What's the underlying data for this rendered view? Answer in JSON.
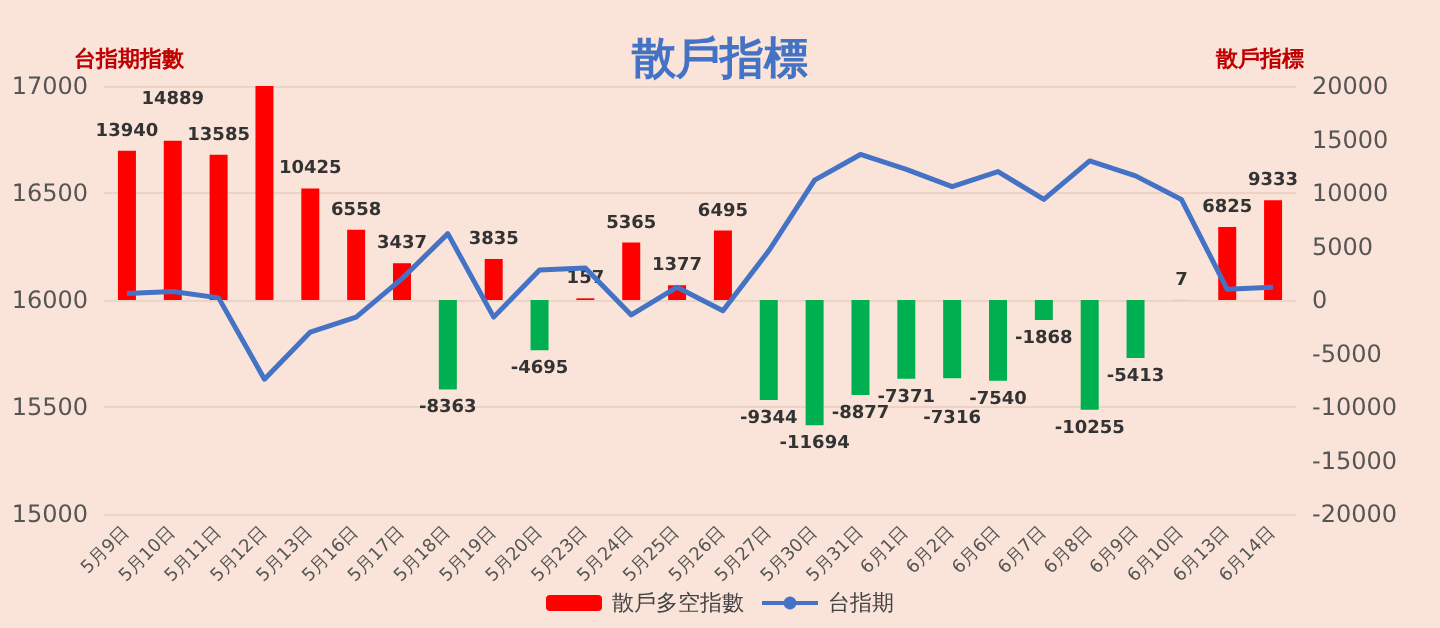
{
  "chart_data": {
    "type": "bar",
    "title": "散戶指標",
    "ylabel": "台指期指數",
    "y2label": "散戶指標",
    "categories": [
      "5月9日",
      "5月10日",
      "5月11日",
      "5月12日",
      "5月13日",
      "5月16日",
      "5月17日",
      "5月18日",
      "5月19日",
      "5月20日",
      "5月23日",
      "5月24日",
      "5月25日",
      "5月26日",
      "5月27日",
      "5月30日",
      "5月31日",
      "6月1日",
      "6月2日",
      "6月6日",
      "6月7日",
      "6月8日",
      "6月9日",
      "6月10日",
      "6月13日",
      "6月14日"
    ],
    "series": [
      {
        "name": "散戶多空指數",
        "type": "bar",
        "axis": "y2",
        "color": "#ff0000",
        "colors": [
          "#ff0000",
          "#ff0000",
          "#ff0000",
          "#ff0000",
          "#ff0000",
          "#ff0000",
          "#ff0000",
          "#00b050",
          "#ff0000",
          "#00b050",
          "#ff0000",
          "#ff0000",
          "#ff0000",
          "#ff0000",
          "#00b050",
          "#00b050",
          "#00b050",
          "#00b050",
          "#00b050",
          "#00b050",
          "#00b050",
          "#00b050",
          "#00b050",
          "#ff0000",
          "#ff0000",
          "#ff0000"
        ],
        "values": [
          13940,
          14889,
          13585,
          20000,
          10425,
          6558,
          3437,
          -8363,
          3835,
          -4695,
          157,
          5365,
          1377,
          6495,
          -9344,
          -11694,
          -8877,
          -7371,
          -7316,
          -7540,
          -1868,
          -10255,
          -5413,
          7,
          6825,
          9333
        ],
        "value_labels": [
          "13940",
          "14889",
          "13585",
          null,
          "10425",
          "6558",
          "3437",
          "-8363",
          "3835",
          "-4695",
          "157",
          "5365",
          "1377",
          "6495",
          "-9344",
          "-11694",
          "-8877",
          "-7371",
          "-7316",
          "-7540",
          "-1868",
          "-10255",
          "-5413",
          "7",
          "6825",
          "9333"
        ]
      },
      {
        "name": "台指期",
        "type": "line",
        "axis": "y",
        "color": "#4472c4",
        "values": [
          16030,
          16040,
          16010,
          15630,
          15850,
          15920,
          16100,
          16310,
          15920,
          16140,
          16150,
          15930,
          16060,
          15950,
          16230,
          16560,
          16680,
          16610,
          16530,
          16600,
          16470,
          16650,
          16580,
          16470,
          16050,
          16060
        ]
      }
    ],
    "ylim": [
      15000,
      17000
    ],
    "yticks": [
      15000,
      15500,
      16000,
      16500,
      17000
    ],
    "y2lim": [
      -20000,
      20000
    ],
    "y2ticks": [
      -20000,
      -15000,
      -10000,
      -5000,
      0,
      5000,
      10000,
      15000,
      20000
    ],
    "grid": "y",
    "legend": "bottom",
    "marker": "none",
    "line_style": "solid"
  }
}
